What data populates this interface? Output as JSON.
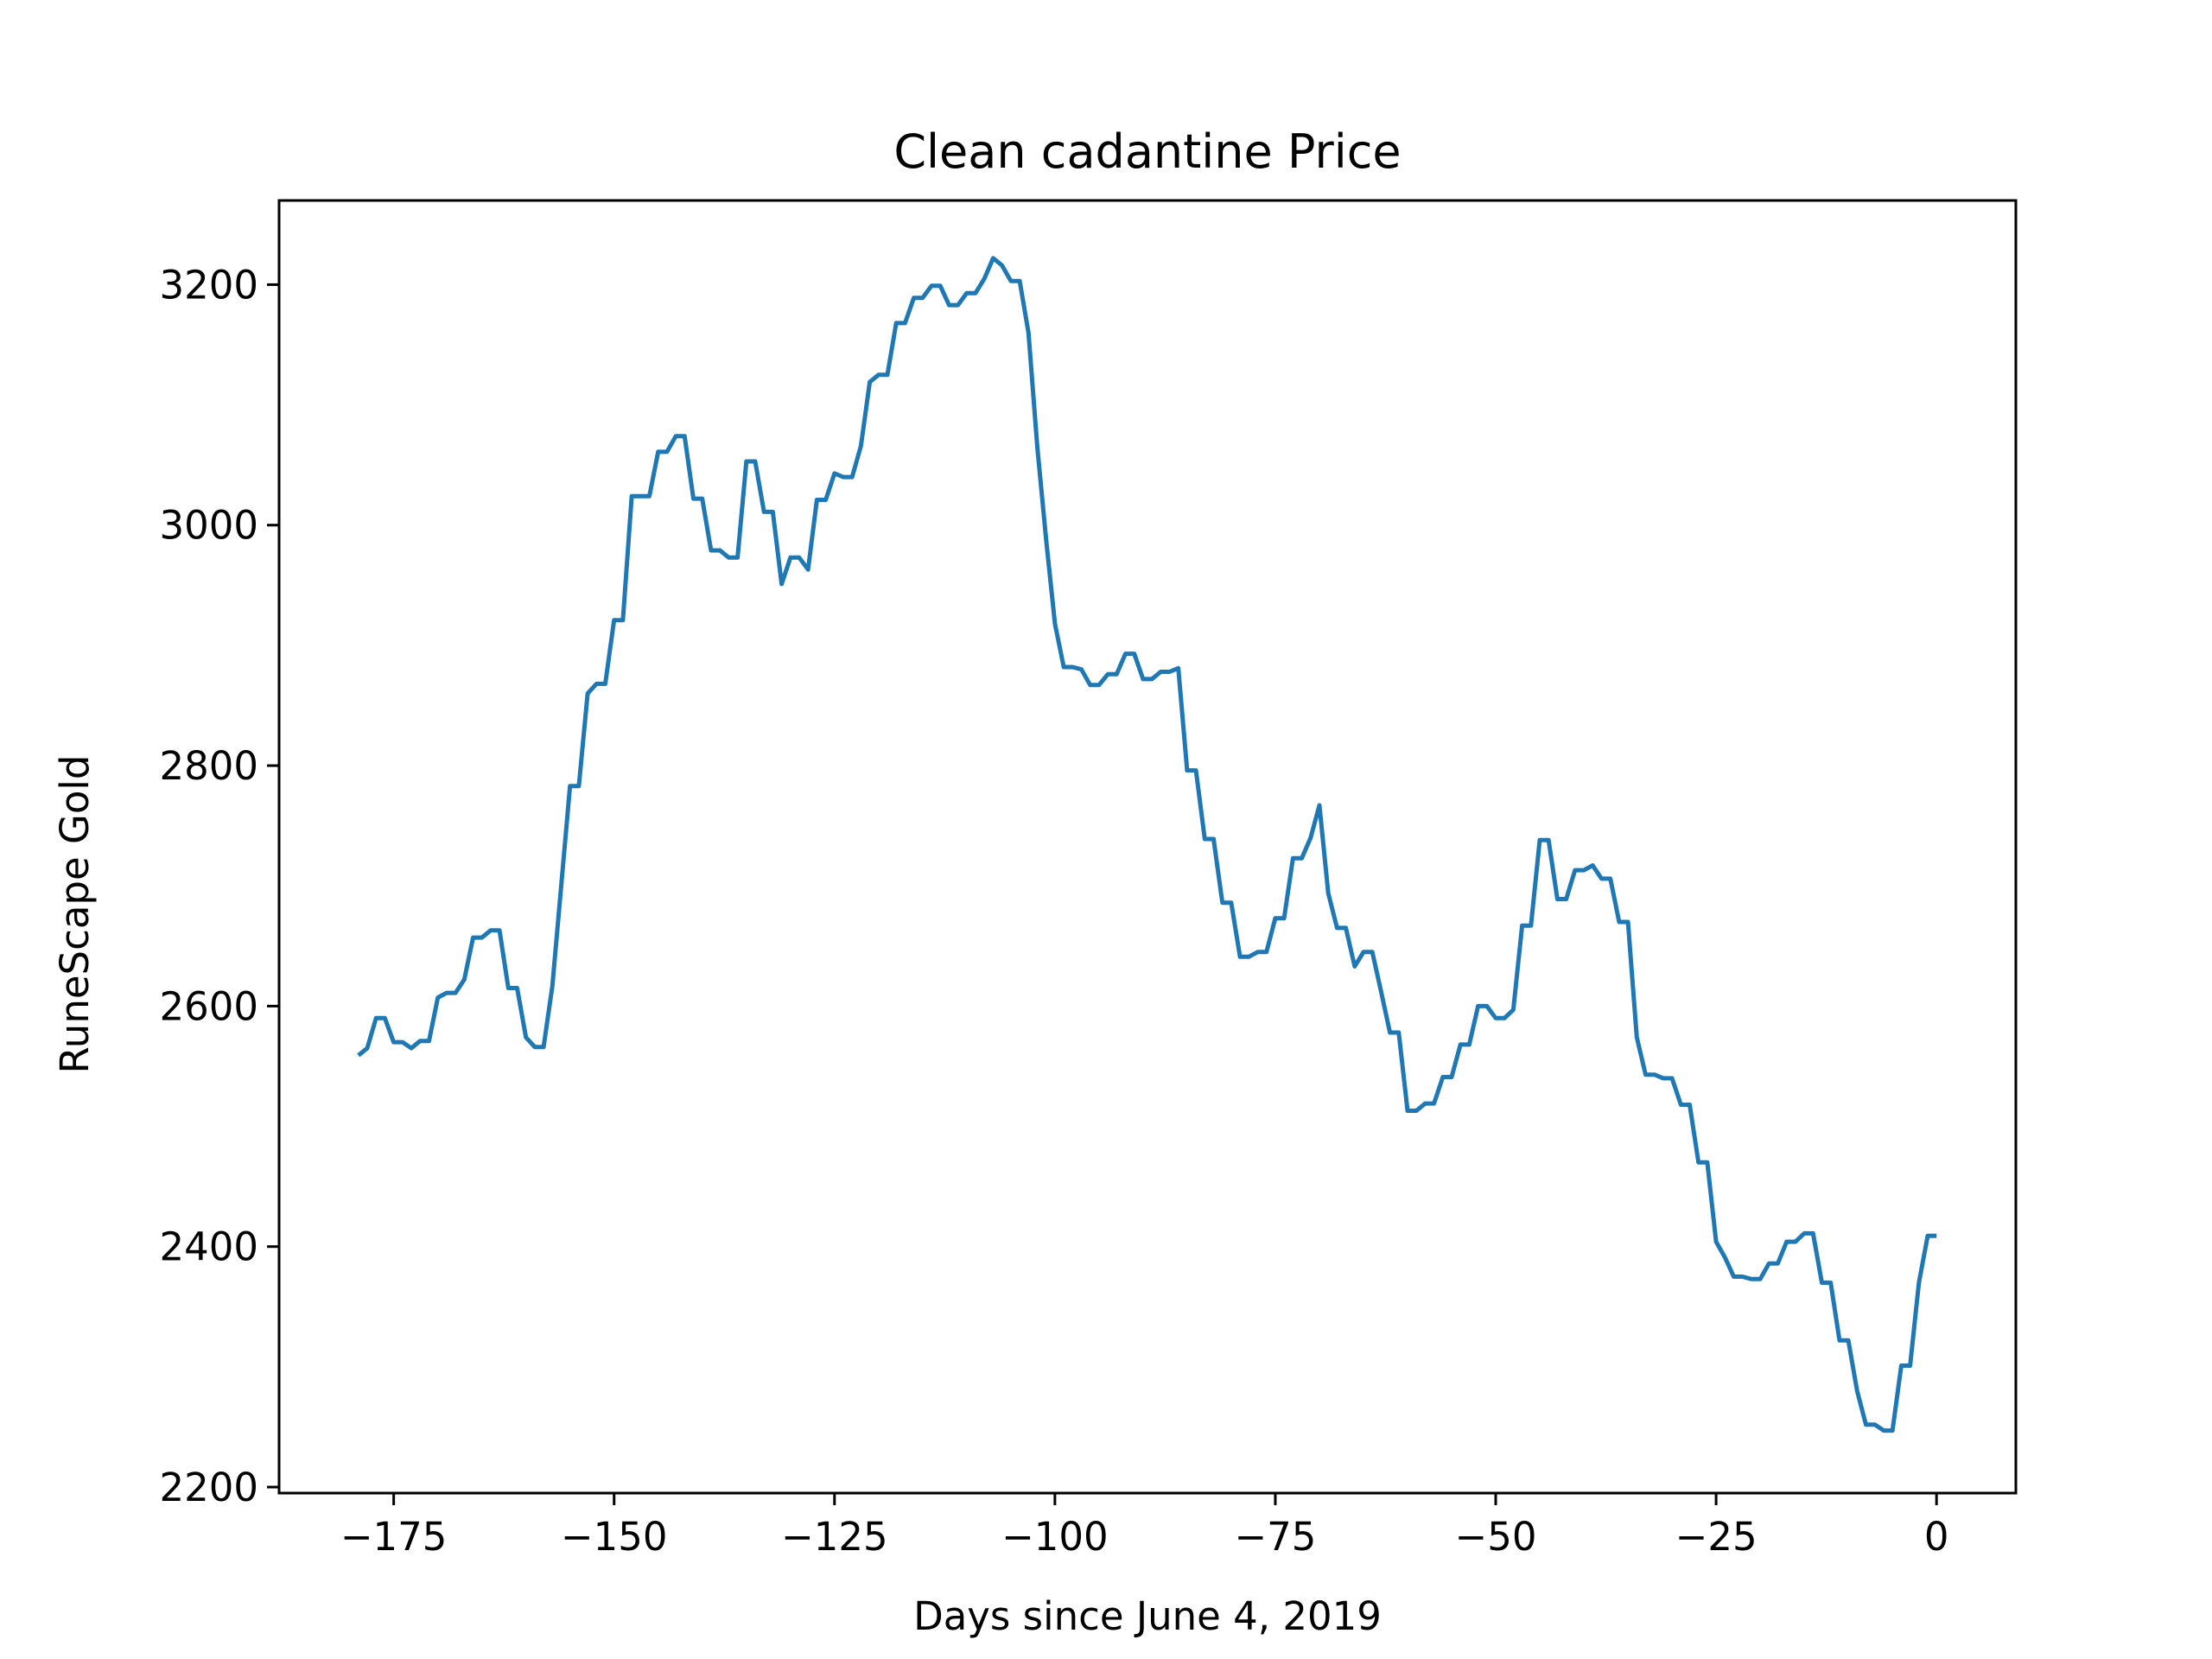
{
  "chart_data": {
    "type": "line",
    "title": "Clean cadantine Price",
    "xlabel": "Days since June 4, 2019",
    "ylabel": "RuneScape Gold",
    "xlim": [
      -188,
      9
    ],
    "ylim": [
      2195,
      3270
    ],
    "xticks": [
      -175,
      -150,
      -125,
      -100,
      -75,
      -50,
      -25,
      0
    ],
    "xtick_labels": [
      "−175",
      "−150",
      "−125",
      "−100",
      "−75",
      "−50",
      "−25",
      "0"
    ],
    "yticks": [
      2200,
      2400,
      2600,
      2800,
      3000,
      3200
    ],
    "ytick_labels": [
      "2200",
      "2400",
      "2600",
      "2800",
      "3000",
      "3200"
    ],
    "grid": false,
    "line_color": "#1f77b4",
    "series": [
      {
        "x": [
          -179,
          -178,
          -177,
          -176,
          -175,
          -174,
          -173,
          -172,
          -171,
          -170,
          -169,
          -168,
          -167,
          -166,
          -165,
          -164,
          -163,
          -162,
          -161,
          -160,
          -159,
          -158,
          -157,
          -156,
          -155,
          -154,
          -153,
          -152,
          -151,
          -150,
          -149,
          -148,
          -147,
          -146,
          -145,
          -144,
          -143,
          -142,
          -141,
          -140,
          -139,
          -138,
          -137,
          -136,
          -135,
          -134,
          -133,
          -132,
          -131,
          -130,
          -129,
          -128,
          -127,
          -126,
          -125,
          -124,
          -123,
          -122,
          -121,
          -120,
          -119,
          -118,
          -117,
          -116,
          -115,
          -114,
          -113,
          -112,
          -111,
          -110,
          -109,
          -108,
          -107,
          -106,
          -105,
          -104,
          -103,
          -102,
          -101,
          -100,
          -99,
          -98,
          -97,
          -96,
          -95,
          -94,
          -93,
          -92,
          -91,
          -90,
          -89,
          -88,
          -87,
          -86,
          -85,
          -84,
          -83,
          -82,
          -81,
          -80,
          -79,
          -78,
          -77,
          -76,
          -75,
          -74,
          -73,
          -72,
          -71,
          -70,
          -69,
          -68,
          -67,
          -66,
          -65,
          -64,
          -63,
          -62,
          -61,
          -60,
          -59,
          -58,
          -57,
          -56,
          -55,
          -54,
          -53,
          -52,
          -51,
          -50,
          -49,
          -48,
          -47,
          -46,
          -45,
          -44,
          -43,
          -42,
          -41,
          -40,
          -39,
          -38,
          -37,
          -36,
          -35,
          -34,
          -33,
          -32,
          -31,
          -30,
          -29,
          -28,
          -27,
          -26,
          -25,
          -24,
          -23,
          -22,
          -21,
          -20,
          -19,
          -18,
          -17,
          -16,
          -15,
          -14,
          -13,
          -12,
          -11,
          -10,
          -9,
          -8,
          -7,
          -6,
          -5,
          -4,
          -3,
          -2,
          -1,
          0
        ],
        "y": [
          2559,
          2565,
          2590,
          2590,
          2570,
          2570,
          2565,
          2571,
          2571,
          2607,
          2611,
          2611,
          2622,
          2657,
          2657,
          2663,
          2663,
          2615,
          2615,
          2574,
          2566,
          2566,
          2617,
          2700,
          2783,
          2783,
          2860,
          2868,
          2868,
          2921,
          2921,
          3024,
          3024,
          3024,
          3061,
          3061,
          3074,
          3074,
          3022,
          3022,
          2979,
          2979,
          2973,
          2973,
          3053,
          3053,
          3011,
          3011,
          2951,
          2973,
          2973,
          2963,
          3021,
          3021,
          3043,
          3040,
          3040,
          3066,
          3119,
          3125,
          3125,
          3168,
          3168,
          3189,
          3189,
          3199,
          3199,
          3183,
          3183,
          3193,
          3193,
          3205,
          3222,
          3216,
          3203,
          3203,
          3160,
          3065,
          2988,
          2918,
          2882,
          2882,
          2880,
          2867,
          2867,
          2876,
          2876,
          2893,
          2893,
          2872,
          2872,
          2878,
          2878,
          2881,
          2796,
          2796,
          2739,
          2739,
          2686,
          2686,
          2641,
          2641,
          2645,
          2645,
          2673,
          2673,
          2723,
          2723,
          2740,
          2767,
          2694,
          2665,
          2665,
          2633,
          2645,
          2645,
          2612,
          2578,
          2578,
          2513,
          2513,
          2519,
          2519,
          2541,
          2541,
          2568,
          2568,
          2600,
          2600,
          2590,
          2590,
          2597,
          2667,
          2667,
          2738,
          2738,
          2689,
          2689,
          2713,
          2713,
          2717,
          2706,
          2706,
          2670,
          2670,
          2574,
          2543,
          2543,
          2540,
          2540,
          2518,
          2518,
          2470,
          2470,
          2404,
          2391,
          2375,
          2375,
          2373,
          2373,
          2386,
          2386,
          2404,
          2404,
          2411,
          2411,
          2370,
          2370,
          2322,
          2322,
          2280,
          2252,
          2252,
          2247,
          2247,
          2301,
          2301,
          2370,
          2409,
          2409
        ]
      }
    ]
  }
}
